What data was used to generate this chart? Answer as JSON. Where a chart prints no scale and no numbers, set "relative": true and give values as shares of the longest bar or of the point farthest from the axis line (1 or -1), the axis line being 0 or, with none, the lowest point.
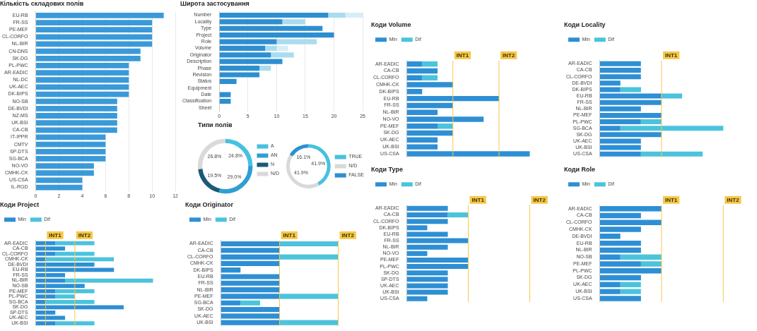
{
  "chart_data": [
    {
      "type": "bar",
      "title": "Кількість складових полів",
      "orientation": "horizontal",
      "categories": [
        "EU-RB",
        "FR-SS",
        "PE-MEF",
        "CL-CORFO",
        "NL-BIR",
        "CN-DNS",
        "SK-DG",
        "PL-PWC",
        "AR-EADIC",
        "NL-DC",
        "UK-AEC",
        "DK-BIPS",
        "NO-SB",
        "DE-BVDI",
        "NZ-MS",
        "UK-BSI",
        "CA-CB",
        "IT-IPPR",
        "CMTV",
        "SP-DTS",
        "SG-BCA",
        "NO-VO",
        "CMHK-CK",
        "US-CSA",
        "IL-RGD"
      ],
      "values": [
        11,
        10,
        10,
        10,
        10,
        9,
        9,
        8,
        8,
        8,
        8,
        8,
        7,
        7,
        7,
        7,
        7,
        6,
        6,
        6,
        6,
        5,
        5,
        4,
        4
      ],
      "color": "#3a9ad9",
      "xlim": [
        0,
        12
      ],
      "xticks": [
        0,
        2,
        4,
        6,
        8,
        10,
        12
      ],
      "grid": "x"
    },
    {
      "type": "bar",
      "title": "Широта застосування",
      "orientation": "horizontal",
      "stacked": true,
      "categories": [
        "Number",
        "Locality",
        "Type",
        "Project",
        "Role",
        "Volume",
        "Originator",
        "Description",
        "Phase",
        "Revision",
        "Status",
        "Equipment",
        "Date",
        "Classification",
        "Sheet"
      ],
      "series": [
        {
          "color": "#2e8fd0",
          "values": [
            19,
            11,
            18,
            20,
            10,
            8,
            9,
            11,
            7,
            7,
            3,
            0,
            2,
            2,
            0
          ]
        },
        {
          "color": "#a9dcef",
          "values": [
            3,
            4,
            0,
            0,
            7,
            2,
            4,
            0,
            2,
            0,
            0,
            0,
            0,
            0,
            0
          ]
        },
        {
          "color": "#d6eef7",
          "values": [
            3,
            0,
            0,
            0,
            0,
            2,
            0,
            0,
            0,
            0,
            0,
            0,
            0,
            0,
            0
          ]
        }
      ],
      "xlim": [
        0,
        25
      ],
      "xticks": [
        0,
        5,
        10,
        15,
        20,
        25
      ],
      "grid": "x"
    },
    {
      "type": "donut",
      "title": "Типи полів",
      "categories": [
        "A",
        "AN",
        "N",
        "N/D"
      ],
      "values": [
        24.8,
        29.0,
        19.5,
        26.8
      ],
      "value_labels": [
        "24.8%",
        "29.0%",
        "19.5%",
        "26.8%"
      ],
      "colors": [
        "#46c1e0",
        "#2f9fd2",
        "#1b5a78",
        "#d9d9d9"
      ],
      "legend": "right"
    },
    {
      "type": "donut",
      "categories": [
        "TRUE",
        "N/D",
        "FALSE"
      ],
      "values": [
        41.9,
        41.9,
        16.1
      ],
      "value_labels": [
        "41.9%",
        "41.9%",
        "16.1%"
      ],
      "colors": [
        "#46c1e0",
        "#d9d9d9",
        "#2e8fd0"
      ],
      "legend": "right"
    },
    {
      "type": "bar",
      "title": "Коди Volume",
      "orientation": "horizontal",
      "stacked": true,
      "relative": true,
      "legend": "top left",
      "categories": [
        "AR-EADIC",
        "CA-CB",
        "CL-CORFO",
        "CMHK-CK",
        "DK-BIPS",
        "EU-RB",
        "FR-SS",
        "NL-BIR",
        "NO-VO",
        "PE-MEF",
        "SK-DG",
        "UK-AEC",
        "UK-BSI",
        "US-CSA"
      ],
      "series": [
        {
          "name": "Min",
          "color": "#2e8fd4",
          "values": [
            0.125,
            0.25,
            0.125,
            0.375,
            0.125,
            0.75,
            0.375,
            0.25,
            0.625,
            0.25,
            0.375,
            0.25,
            0.25,
            1
          ]
        },
        {
          "name": "Dif",
          "color": "#4cc3dc",
          "values": [
            0.125,
            0,
            0.125,
            0,
            0,
            0,
            0,
            0,
            0,
            0.125,
            0,
            0,
            0,
            0
          ]
        }
      ],
      "ref_lines": [
        {
          "axis": "x",
          "value": 0.375,
          "label": "INT1",
          "color": "#f5c84a"
        },
        {
          "axis": "x",
          "value": 0.75,
          "label": "INT2",
          "color": "#f5c84a"
        }
      ]
    },
    {
      "type": "bar",
      "title": "Коди Locality",
      "orientation": "horizontal",
      "stacked": true,
      "relative": true,
      "legend": "top left",
      "categories": [
        "AR-EADIC",
        "CA-CB",
        "CL-CORFO",
        "DE-BVDI",
        "DK-BIPS",
        "EU-RB",
        "FR-SS",
        "NL-BIR",
        "PE-MEF",
        "PL-PWC",
        "SG-BCA",
        "SK-DG",
        "UK-AEC",
        "UK-BSI",
        "US-CSA"
      ],
      "series": [
        {
          "name": "Min",
          "color": "#2e8fd4",
          "values": [
            0.333,
            0.333,
            0.333,
            0.167,
            0.167,
            0.5,
            0.5,
            0.333,
            0.5,
            0.333,
            0.167,
            0.5,
            0.333,
            0.333,
            0.333
          ]
        },
        {
          "name": "Dif",
          "color": "#4cc3dc",
          "values": [
            0,
            0,
            0,
            0,
            0.167,
            0.167,
            0,
            0,
            0,
            0.167,
            0.833,
            0,
            0,
            0,
            0.5
          ]
        }
      ],
      "ref_lines": [
        {
          "axis": "x",
          "value": 0.5,
          "label": "INT1",
          "color": "#f5c84a"
        }
      ]
    },
    {
      "type": "bar",
      "title": "Коди Type",
      "orientation": "horizontal",
      "stacked": true,
      "relative": true,
      "legend": "top left",
      "categories": [
        "AR-EADIC",
        "CA-CB",
        "CL-CORFO",
        "DK-BIPS",
        "EU-RB",
        "FR-SS",
        "NL-BIR",
        "NO-VO",
        "PE-MEF",
        "PL-PWC",
        "SK-DG",
        "SP-DTS",
        "UK-AEC",
        "UK-BSI",
        "US-CSA"
      ],
      "series": [
        {
          "name": "Min",
          "color": "#2e8fd4",
          "values": [
            0.667,
            0.667,
            0.667,
            0.333,
            0.667,
            1,
            0.667,
            0.333,
            1,
            1,
            0.667,
            0.667,
            0.667,
            0.667,
            0.333
          ]
        },
        {
          "name": "Dif",
          "color": "#4cc3dc",
          "values": [
            0,
            0.333,
            0,
            0,
            0,
            0,
            0,
            0,
            0,
            0,
            0,
            0,
            0,
            0,
            0
          ]
        }
      ],
      "ref_lines": [
        {
          "axis": "x",
          "value": 1,
          "label": "INT1",
          "color": "#f5c84a"
        },
        {
          "axis": "x",
          "value": 2,
          "label": "INT2",
          "color": "#f5c84a"
        }
      ]
    },
    {
      "type": "bar",
      "title": "Коди Role",
      "orientation": "horizontal",
      "stacked": true,
      "relative": true,
      "legend": "top left",
      "categories": [
        "AR-EADIC",
        "CA-CB",
        "CL-CORFO",
        "CMHK-CK",
        "DE-BVDI",
        "EU-RB",
        "NL-BIR",
        "NO-SB",
        "PE-MEF",
        "PL-PWC",
        "SK-DG",
        "UK-AEC",
        "UK-BSI",
        "US-CSA"
      ],
      "series": [
        {
          "name": "Min",
          "color": "#2e8fd4",
          "values": [
            1,
            0.667,
            1,
            0.667,
            0.333,
            0.667,
            0.667,
            0.333,
            0.667,
            1,
            0.667,
            0.333,
            0.333,
            0.667
          ]
        },
        {
          "name": "Dif",
          "color": "#4cc3dc",
          "values": [
            0,
            0,
            0,
            0,
            0,
            0,
            0,
            0.667,
            0.333,
            0,
            0,
            0.333,
            0.333,
            0
          ]
        }
      ],
      "ref_lines": [
        {
          "axis": "x",
          "value": 1,
          "label": "INT1",
          "color": "#f5c84a"
        },
        {
          "axis": "x",
          "value": 2,
          "label": "INT2",
          "color": "#f5c84a"
        }
      ]
    },
    {
      "type": "bar",
      "title": "Коди Project",
      "orientation": "horizontal",
      "stacked": true,
      "relative": true,
      "legend": "top left",
      "categories": [
        "AR-EADIC",
        "CA-CB",
        "CL-CORFO",
        "CMHK-CK",
        "DE-BVDI",
        "EU-RB",
        "FR-SS",
        "NL-BIR",
        "NO-SB",
        "PE-MEF",
        "PL-PWC",
        "SG-BCA",
        "SK-DG",
        "SP-DTS",
        "UK-AEC",
        "UK-BSI"
      ],
      "series": [
        {
          "name": "Min",
          "color": "#2e8fd4",
          "values": [
            0.167,
            0.25,
            0.167,
            0.083,
            0.5,
            0.667,
            0.25,
            0.25,
            0.417,
            0.167,
            0.167,
            0.083,
            0.75,
            0.167,
            0.25,
            0.167
          ]
        },
        {
          "name": "Dif",
          "color": "#4cc3dc",
          "values": [
            0.333,
            0,
            0.333,
            0.583,
            0,
            0,
            0,
            0.75,
            0,
            0.333,
            0.167,
            0.417,
            0,
            0,
            0,
            0.333
          ]
        }
      ],
      "ref_lines": [
        {
          "axis": "x",
          "value": 0.083,
          "label": "INT1",
          "color": "#f5c84a"
        },
        {
          "axis": "x",
          "value": 0.333,
          "label": "INT2",
          "color": "#f5c84a"
        }
      ]
    },
    {
      "type": "bar",
      "title": "Коди Originator",
      "orientation": "horizontal",
      "stacked": true,
      "relative": true,
      "legend": "top left",
      "categories": [
        "AR-EADIC",
        "CA-CB",
        "CL-CORFO",
        "CMHK-CK",
        "DK-BIPS",
        "EU-RB",
        "FR-SS",
        "NL-BIR",
        "PE-MEF",
        "SG-BCA",
        "SK-DG",
        "UK-AEC",
        "UK-BSI"
      ],
      "series": [
        {
          "name": "Min",
          "color": "#2e8fd4",
          "values": [
            0.5,
            0.5,
            0.5,
            0.5,
            0.167,
            0.5,
            0.5,
            0.5,
            0.5,
            0.167,
            0.5,
            0.5,
            0.5
          ]
        },
        {
          "name": "Dif",
          "color": "#4cc3dc",
          "values": [
            0.5,
            0,
            0.5,
            0,
            0,
            0,
            0,
            0,
            0.5,
            0.167,
            0,
            0,
            0.5
          ]
        }
      ],
      "ref_lines": [
        {
          "axis": "x",
          "value": 0.5,
          "label": "INT1",
          "color": "#f5c84a"
        },
        {
          "axis": "x",
          "value": 1,
          "label": "INT2",
          "color": "#f5c84a"
        }
      ]
    }
  ]
}
